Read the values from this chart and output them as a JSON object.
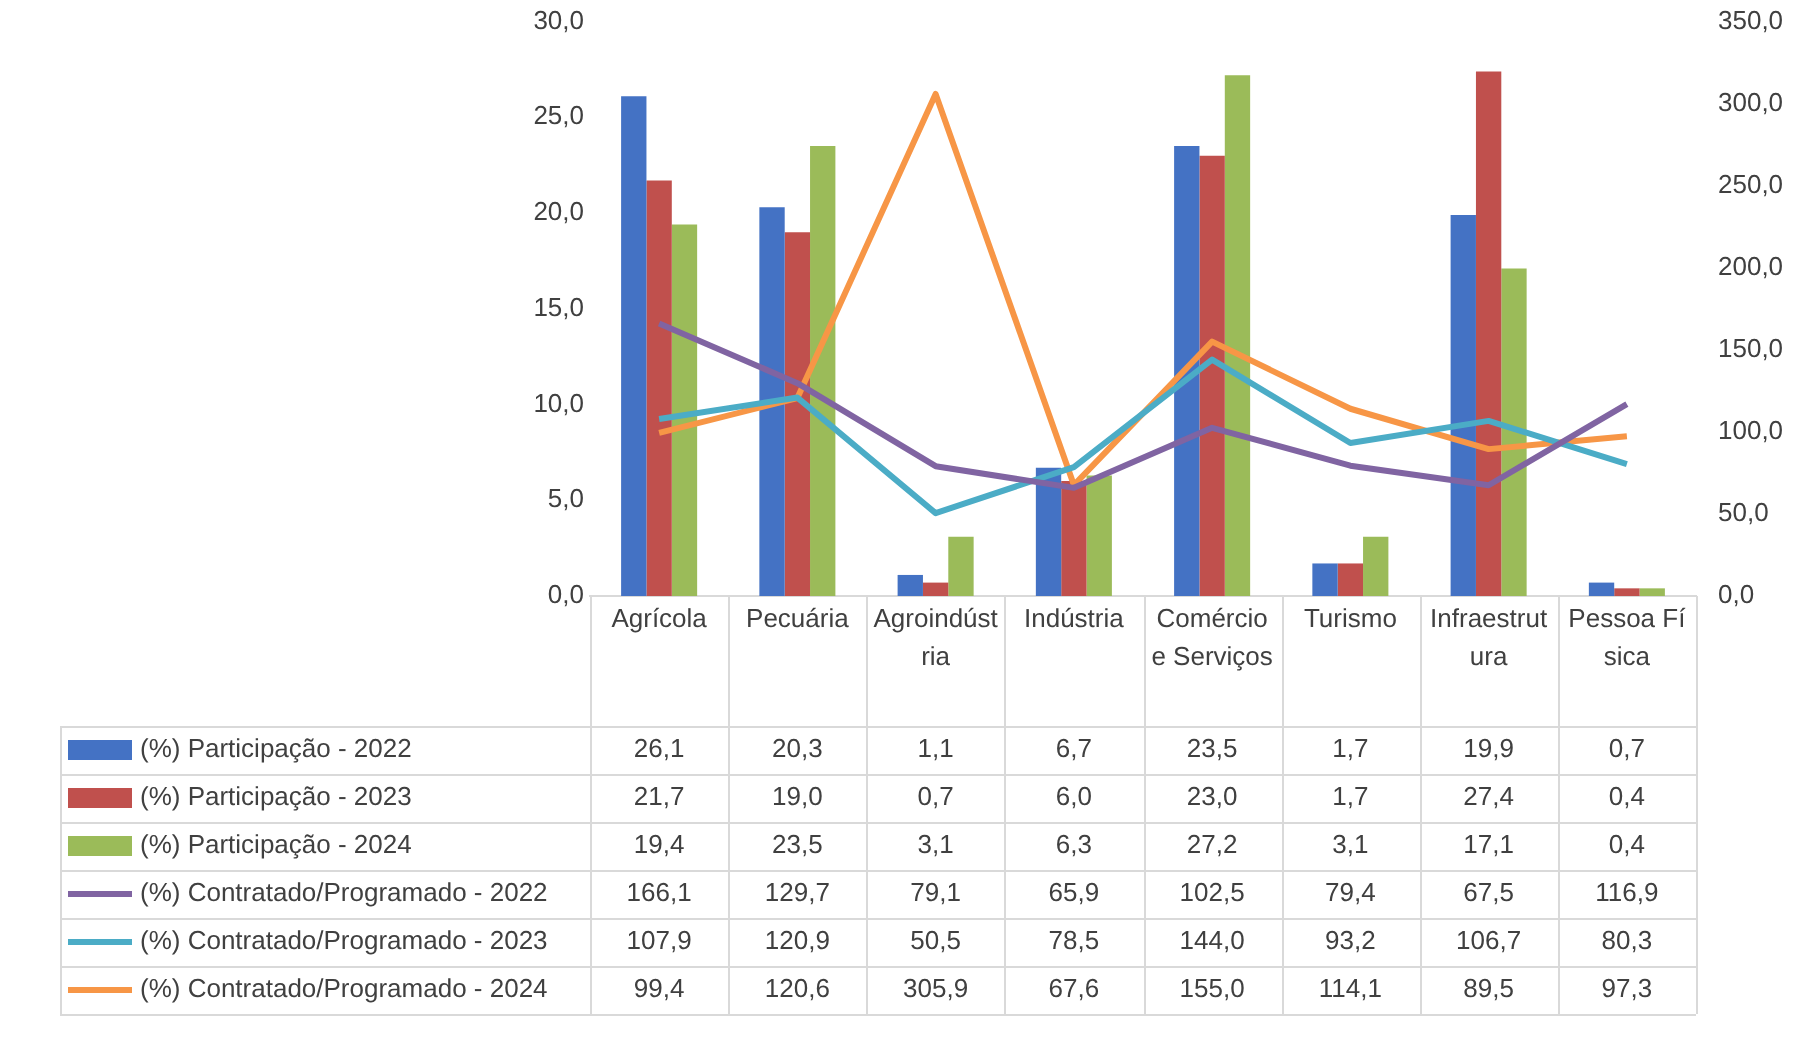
{
  "chart_data": {
    "type": "bar",
    "categories": [
      "Agrícola",
      "Pecuária",
      "Agroindústria",
      "Indústria",
      "Comércio e Serviços",
      "Turismo",
      "Infraestrutura",
      "Pessoa Física"
    ],
    "series": [
      {
        "name": "(%) Participação - 2022",
        "color": "#4472c4",
        "values": [
          26.1,
          20.3,
          1.1,
          6.7,
          23.5,
          1.7,
          19.9,
          0.7
        ],
        "value_labels": [
          "26,1",
          "20,3",
          "1,1",
          "6,7",
          "23,5",
          "1,7",
          "19,9",
          "0,7"
        ]
      },
      {
        "name": "(%) Participação - 2023",
        "color": "#c0504d",
        "values": [
          21.7,
          19.0,
          0.7,
          6.0,
          23.0,
          1.7,
          27.4,
          0.4
        ],
        "value_labels": [
          "21,7",
          "19,0",
          "0,7",
          "6,0",
          "23,0",
          "1,7",
          "27,4",
          "0,4"
        ]
      },
      {
        "name": "(%) Participação - 2024",
        "color": "#9bbb59",
        "values": [
          19.4,
          23.5,
          3.1,
          6.3,
          27.2,
          3.1,
          17.1,
          0.4
        ],
        "value_labels": [
          "19,4",
          "23,5",
          "3,1",
          "6,3",
          "27,2",
          "3,1",
          "17,1",
          "0,4"
        ]
      },
      {
        "name": "(%) Contratado/Programado - 2022",
        "type": "line",
        "axis": "y2",
        "color": "#8064a2",
        "values": [
          166.1,
          129.7,
          79.1,
          65.9,
          102.5,
          79.4,
          67.5,
          116.9
        ],
        "value_labels": [
          "166,1",
          "129,7",
          "79,1",
          "65,9",
          "102,5",
          "79,4",
          "67,5",
          "116,9"
        ]
      },
      {
        "name": "(%) Contratado/Programado - 2023",
        "type": "line",
        "axis": "y2",
        "color": "#4bacc6",
        "values": [
          107.9,
          120.9,
          50.5,
          78.5,
          144.0,
          93.2,
          106.7,
          80.3
        ],
        "value_labels": [
          "107,9",
          "120,9",
          "50,5",
          "78,5",
          "144,0",
          "93,2",
          "106,7",
          "80,3"
        ]
      },
      {
        "name": "(%) Contratado/Programado - 2024",
        "type": "line",
        "axis": "y2",
        "color": "#f79646",
        "values": [
          99.4,
          120.6,
          305.9,
          67.6,
          155.0,
          114.1,
          89.5,
          97.3
        ],
        "value_labels": [
          "99,4",
          "120,6",
          "305,9",
          "67,6",
          "155,0",
          "114,1",
          "89,5",
          "97,3"
        ]
      }
    ],
    "ylim": [
      0,
      30
    ],
    "yticks": [
      {
        "value": 0,
        "label": "0,0"
      },
      {
        "value": 5,
        "label": "5,0"
      },
      {
        "value": 10,
        "label": "10,0"
      },
      {
        "value": 15,
        "label": "15,0"
      },
      {
        "value": 20,
        "label": "20,0"
      },
      {
        "value": 25,
        "label": "25,0"
      },
      {
        "value": 30,
        "label": "30,0"
      }
    ],
    "y2lim": [
      0,
      350
    ],
    "y2ticks": [
      {
        "value": 0,
        "label": "0,0"
      },
      {
        "value": 50,
        "label": "50,0"
      },
      {
        "value": 100,
        "label": "100,0"
      },
      {
        "value": 150,
        "label": "150,0"
      },
      {
        "value": 200,
        "label": "200,0"
      },
      {
        "value": 250,
        "label": "250,0"
      },
      {
        "value": 300,
        "label": "300,0"
      },
      {
        "value": 350,
        "label": "350,0"
      }
    ],
    "grid": false,
    "legend": "bottom left",
    "marker": "none",
    "line_style": "solid"
  }
}
